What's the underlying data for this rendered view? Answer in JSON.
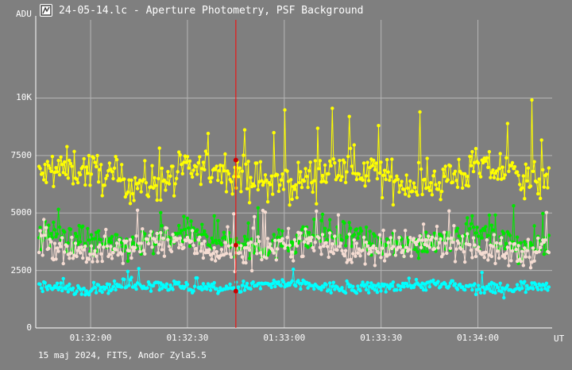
{
  "window": {
    "title": "24-05-14.lc - Aperture Photometry, PSF Background",
    "icon": "photometry-app-icon"
  },
  "footer_text": "15 maj 2024, FITS, Andor Zyla5.5",
  "colors": {
    "background": "#7f7f7f",
    "grid": "#b5b5b5",
    "cursor": "#ff0000",
    "yellow": "#ffff00",
    "green": "#00e600",
    "pink": "#f5dcd2",
    "cyan": "#00ffff"
  },
  "chart_data": {
    "type": "scatter",
    "title": "24-05-14.lc - Aperture Photometry, PSF Background",
    "ylabel": "ADU",
    "xlabel": "UT",
    "ylim": [
      0,
      13400
    ],
    "xlim_seconds": [
      0,
      160
    ],
    "y_ticks": [
      {
        "value": 0,
        "label": "0"
      },
      {
        "value": 2500,
        "label": "2500"
      },
      {
        "value": 5000,
        "label": "5000"
      },
      {
        "value": 7500,
        "label": "7500"
      },
      {
        "value": 10000,
        "label": "10K"
      }
    ],
    "x_ticks": [
      {
        "value": 17,
        "label": "01:32:00"
      },
      {
        "value": 47,
        "label": "01:32:30"
      },
      {
        "value": 77,
        "label": "01:33:00"
      },
      {
        "value": 107,
        "label": "01:33:30"
      },
      {
        "value": 137,
        "label": "01:34:00"
      }
    ],
    "grid": true,
    "cursor": {
      "x": 62,
      "markers": [
        7300,
        3600,
        1600
      ]
    },
    "series": [
      {
        "color": "#ffff00",
        "mean": 6600,
        "spread": 850,
        "spike_max": 10000,
        "style": "lines-points"
      },
      {
        "color": "#00e600",
        "mean": 3800,
        "spread": 650,
        "spike_max": 5500,
        "style": "lines-points"
      },
      {
        "color": "#f5dcd2",
        "mean": 3500,
        "spread": 650,
        "spike_max": 5200,
        "style": "lines-points"
      },
      {
        "color": "#00ffff",
        "mean": 1800,
        "spread": 260,
        "spike_max": 2600,
        "style": "lines-points"
      }
    ],
    "n_points": 420
  }
}
